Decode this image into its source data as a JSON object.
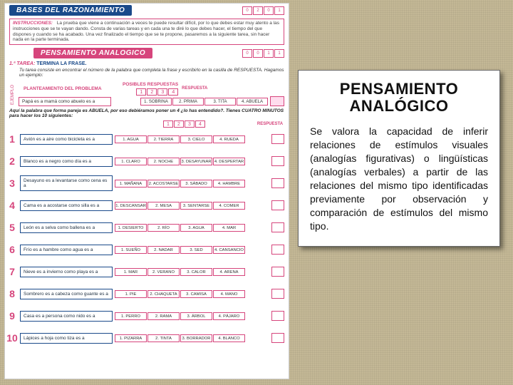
{
  "callout": {
    "title": "PENSAMIENTO ANALÓGICO",
    "body": "Se valora la capacidad de inferir relaciones de estímulos visuales (analogías figurativas) o lingüísticas (analogías verbales) a partir de las relaciones del mismo tipo identificadas previamente por observación y comparación de estímulos del mismo tipo."
  },
  "page": {
    "top_banner": "BASES DEL RAZONAMIENTO",
    "top_codes": [
      "0",
      "2",
      "0",
      "1"
    ],
    "instr_label": "INSTRUCCIONES:",
    "instr_text": "La prueba que viene a continuación a veces te puede resultar difícil, por lo que debes estar muy atento a las instrucciones que se te vayan dando. Consta de varias tareas y en cada una te diré lo que debes hacer, el tiempo del que dispones y cuando se ha acabado. Una vez finalizado el tiempo que se te propone, pasaremos a la siguiente tarea, sin hacer nada en la parte terminada.",
    "sub_banner": "PENSAMIENTO ANALOGICO",
    "nivel_codes": [
      "0",
      "0",
      "1",
      "1"
    ],
    "tarea_lbl": "1.ª TAREA:",
    "tarea_title": "TERMINA LA FRASE.",
    "tarea_desc": "Tu tarea consiste en encontrar el número de la palabra que completa la frase y escribirlo en la casilla de RESPUESTA. Hagamos un ejemplo:",
    "plant_lbl": "PLANTEAMIENTO DEL PROBLEMA",
    "posibles_lbl": "POSIBLES RESPUESTAS",
    "resp_lbl": "RESPUESTA",
    "ejemplo_side": "EJEMPLO",
    "ejemplo_text": "Papá es a mamá como abuelo es a",
    "ejemplo_nums": [
      "1",
      "2",
      "3",
      "4"
    ],
    "ejemplo_opts": [
      "1. SOBRINA",
      "2. PRIMA",
      "3. TITA",
      "4. ABUELA"
    ],
    "note": "Aquí la palabra que forma pareja es ABUELA, por eso debiéramos poner un 4 ¿lo has entendido?. Tienes CUATRO MINUTOS para hacer los 10 siguientes:",
    "questions": [
      {
        "n": "1",
        "text": "Avión es a aire como bicicleta es a",
        "opts": [
          "1. AGUA",
          "2. TIERRA",
          "3. CIELO",
          "4. RUEDA"
        ]
      },
      {
        "n": "2",
        "text": "Blanco es a negro como día es a",
        "opts": [
          "1. CLARO",
          "2. NOCHE",
          "3. DESAYUNAR",
          "4. DESPERTAR"
        ]
      },
      {
        "n": "3",
        "text": "Desayuno es a levantarse como cena es a",
        "opts": [
          "1. MAÑANA",
          "2. ACOSTARSE",
          "3. SÁBADO",
          "4. HAMBRE"
        ]
      },
      {
        "n": "4",
        "text": "Cama es a acostarse como silla es a",
        "opts": [
          "1. DESCANSAR",
          "2. MESA",
          "3. SENTARSE",
          "4. COMER"
        ]
      },
      {
        "n": "5",
        "text": "León es a selva como ballena es a",
        "opts": [
          "1. DESIERTO",
          "2. RÍO",
          "3. AGUA",
          "4. MAR"
        ]
      },
      {
        "n": "6",
        "text": "Frío es a hambre como agua es a",
        "opts": [
          "1. SUEÑO",
          "2. NADAR",
          "3. SED",
          "4. CANSANCIO"
        ]
      },
      {
        "n": "7",
        "text": "Nieve es a invierno como playa es a",
        "opts": [
          "1. MAR",
          "2. VERANO",
          "3. CALOR",
          "4. ARENA"
        ]
      },
      {
        "n": "8",
        "text": "Sombrero es a cabeza como guante es a",
        "opts": [
          "1. PIE",
          "2. CHAQUETA",
          "3. CAMISA",
          "4. MANO"
        ]
      },
      {
        "n": "9",
        "text": "Casa es a persona como nido es a",
        "opts": [
          "1. PERRO",
          "2. RAMA",
          "3. ÁRBOL",
          "4. PÁJARO"
        ]
      },
      {
        "n": "10",
        "text": "Lápices a hoja como tiza es a",
        "opts": [
          "1. PIZARRA",
          "2. TINTA",
          "3. BORRADOR",
          "4. BLANCO"
        ]
      }
    ]
  },
  "colors": {
    "blue": "#1a4a8a",
    "pink": "#d6457c",
    "bg": "#c4b896",
    "paper": "#ffffff"
  }
}
